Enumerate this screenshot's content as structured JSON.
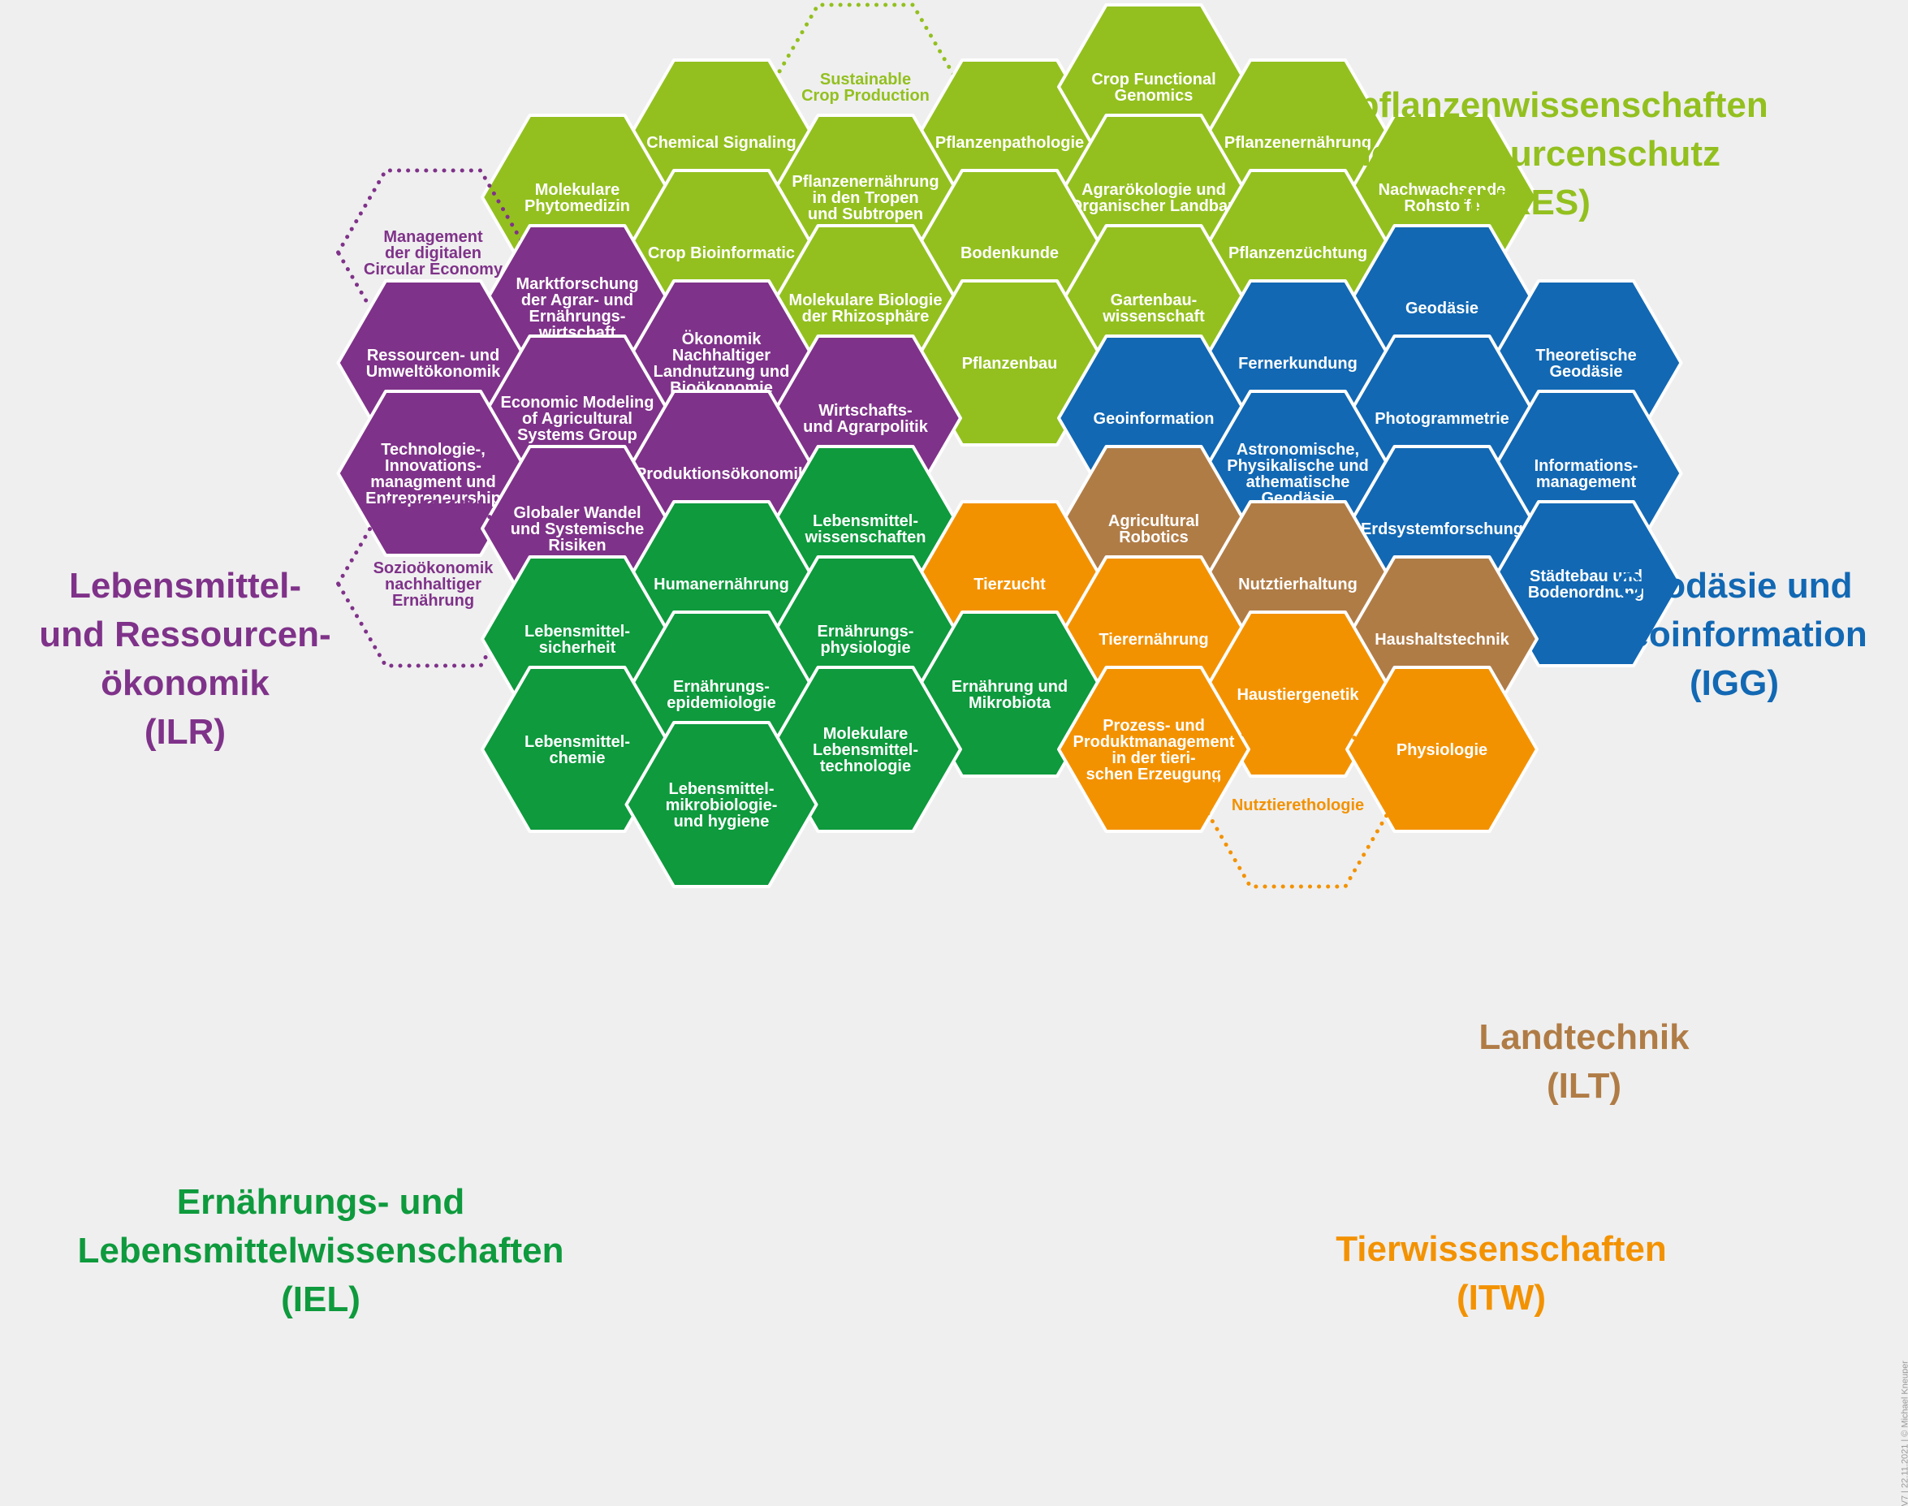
{
  "colors": {
    "light_green": "#93c01f",
    "purple": "#7f3289",
    "blue": "#1268b3",
    "dark_green": "#0e9a3d",
    "orange": "#f39200",
    "brown": "#b07c46",
    "background": "#efefef",
    "border": "#ffffff"
  },
  "institutes": {
    "inres": {
      "label": "Nutzpflanzenwissenschaften\nund Ressourcenschutz\n(INRES)",
      "color": "light_green"
    },
    "ilr": {
      "label": "Lebensmittel-\nund Ressourcen-\nökonomik\n(ILR)",
      "color": "purple"
    },
    "igg": {
      "label": "Geodäsie und\nGeoinformation\n(IGG)",
      "color": "blue"
    },
    "ilt": {
      "label": "Landtechnik\n(ILT)",
      "color": "brown"
    },
    "itw": {
      "label": "Tierwissenschaften\n(ITW)",
      "color": "orange"
    },
    "iel": {
      "label": "Ernährungs- und\nLebensmittelwissenschaften\n(IEL)",
      "color": "dark_green"
    }
  },
  "cells": [
    {
      "col": 3,
      "row": 1,
      "color": "light_green",
      "lines": [
        "Chemical Signaling"
      ]
    },
    {
      "col": 4,
      "row": 0.5,
      "color": "light_green",
      "dashed": true,
      "lines": [
        "Sustainable",
        "Crop Production"
      ]
    },
    {
      "col": 5,
      "row": 1,
      "color": "light_green",
      "lines": [
        "Pflanzenpathologie"
      ]
    },
    {
      "col": 6,
      "row": 0.5,
      "color": "light_green",
      "lines": [
        "Crop Functional",
        "Genomics"
      ]
    },
    {
      "col": 7,
      "row": 1,
      "color": "light_green",
      "lines": [
        "Pflanzenernährung"
      ]
    },
    {
      "col": 2,
      "row": 1.5,
      "color": "light_green",
      "lines": [
        "Molekulare",
        "Phytomedizin"
      ]
    },
    {
      "col": 4,
      "row": 1.5,
      "color": "light_green",
      "lines": [
        "Pflanzenernährung",
        "in den Tropen",
        "und Subtropen"
      ]
    },
    {
      "col": 6,
      "row": 1.5,
      "color": "light_green",
      "lines": [
        "Agrarökologie und",
        "Organischer Landbau"
      ]
    },
    {
      "col": 8,
      "row": 1.5,
      "color": "light_green",
      "lines": [
        "Nachwachsende",
        "Rohstoffe"
      ]
    },
    {
      "col": 1,
      "row": 2,
      "color": "purple",
      "dashed": true,
      "lines": [
        "Management",
        "der digitalen",
        "Circular Economy"
      ]
    },
    {
      "col": 3,
      "row": 2,
      "color": "light_green",
      "lines": [
        "Crop Bioinformatic"
      ]
    },
    {
      "col": 5,
      "row": 2,
      "color": "light_green",
      "lines": [
        "Bodenkunde"
      ]
    },
    {
      "col": 7,
      "row": 2,
      "color": "light_green",
      "lines": [
        "Pflanzenzüchtung"
      ]
    },
    {
      "col": 2,
      "row": 2.5,
      "color": "purple",
      "lines": [
        "Marktforschung",
        "der Agrar- und",
        "Ernährungs-",
        "wirtschaft"
      ]
    },
    {
      "col": 4,
      "row": 2.5,
      "color": "light_green",
      "lines": [
        "Molekulare Biologie",
        "der Rhizosphäre"
      ]
    },
    {
      "col": 6,
      "row": 2.5,
      "color": "light_green",
      "lines": [
        "Gartenbau-",
        "wissenschaft"
      ]
    },
    {
      "col": 8,
      "row": 2.5,
      "color": "blue",
      "lines": [
        "Geodäsie"
      ]
    },
    {
      "col": 1,
      "row": 3,
      "color": "purple",
      "lines": [
        "Ressourcen- und",
        "Umweltökonomik"
      ]
    },
    {
      "col": 3,
      "row": 3,
      "color": "purple",
      "lines": [
        "Ökonomik",
        "Nachhaltiger",
        "Landnutzung und",
        "Bioökonomie"
      ]
    },
    {
      "col": 5,
      "row": 3,
      "color": "light_green",
      "lines": [
        "Pflanzenbau"
      ]
    },
    {
      "col": 7,
      "row": 3,
      "color": "blue",
      "lines": [
        "Fernerkundung"
      ]
    },
    {
      "col": 9,
      "row": 3,
      "color": "blue",
      "lines": [
        "Theoretische",
        "Geodäsie"
      ]
    },
    {
      "col": 2,
      "row": 3.5,
      "color": "purple",
      "lines": [
        "Economic Modeling",
        "of Agricultural",
        "Systems Group"
      ]
    },
    {
      "col": 4,
      "row": 3.5,
      "color": "purple",
      "lines": [
        "Wirtschafts-",
        "und Agrarpolitik"
      ]
    },
    {
      "col": 6,
      "row": 3.5,
      "color": "blue",
      "lines": [
        "Geoinformation"
      ]
    },
    {
      "col": 8,
      "row": 3.5,
      "color": "blue",
      "lines": [
        "Photogrammetrie"
      ]
    },
    {
      "col": 1,
      "row": 4,
      "color": "purple",
      "lines": [
        "Technologie-,",
        "Innovations-",
        "managment und",
        "Entrepreneurship"
      ]
    },
    {
      "col": 3,
      "row": 4,
      "color": "purple",
      "lines": [
        "Produktionsökonomik"
      ]
    },
    {
      "col": 7,
      "row": 4,
      "color": "blue",
      "lines": [
        "Astronomische,",
        "Physikalische und",
        "athematische",
        "Geodäsie"
      ]
    },
    {
      "col": 9,
      "row": 4,
      "color": "blue",
      "lines": [
        "Informations-",
        "management"
      ]
    },
    {
      "col": 2,
      "row": 4.5,
      "color": "purple",
      "lines": [
        "Globaler Wandel",
        "und Systemische",
        "Risiken"
      ]
    },
    {
      "col": 4,
      "row": 4.5,
      "color": "dark_green",
      "lines": [
        "Lebensmittel-",
        "wissenschaften"
      ]
    },
    {
      "col": 6,
      "row": 4.5,
      "color": "brown",
      "lines": [
        "Agricultural",
        "Robotics"
      ]
    },
    {
      "col": 8,
      "row": 4.5,
      "color": "blue",
      "lines": [
        "Erdsystemforschung"
      ]
    },
    {
      "col": 1,
      "row": 5,
      "color": "purple",
      "dashed": true,
      "lines": [
        "Sozioökonomik",
        "nachhaltiger",
        "Ernährung"
      ]
    },
    {
      "col": 3,
      "row": 5,
      "color": "dark_green",
      "lines": [
        "Humanernährung"
      ]
    },
    {
      "col": 5,
      "row": 5,
      "color": "orange",
      "lines": [
        "Tierzucht"
      ]
    },
    {
      "col": 7,
      "row": 5,
      "color": "brown",
      "lines": [
        "Nutztierhaltung"
      ]
    },
    {
      "col": 9,
      "row": 5,
      "color": "blue",
      "lines": [
        "Städtebau und",
        "Bodenordnung"
      ]
    },
    {
      "col": 2,
      "row": 5.5,
      "color": "dark_green",
      "lines": [
        "Lebensmittel-",
        "sicherheit"
      ]
    },
    {
      "col": 4,
      "row": 5.5,
      "color": "dark_green",
      "lines": [
        "Ernährungs-",
        "physiologie"
      ]
    },
    {
      "col": 6,
      "row": 5.5,
      "color": "orange",
      "lines": [
        "Tierernährung"
      ]
    },
    {
      "col": 8,
      "row": 5.5,
      "color": "brown",
      "lines": [
        "Haushaltstechnik"
      ]
    },
    {
      "col": 3,
      "row": 6,
      "color": "dark_green",
      "lines": [
        "Ernährungs-",
        "epidemiologie"
      ]
    },
    {
      "col": 5,
      "row": 6,
      "color": "dark_green",
      "lines": [
        "Ernährung und",
        "Mikrobiota"
      ]
    },
    {
      "col": 7,
      "row": 6,
      "color": "orange",
      "lines": [
        "Haustiergenetik"
      ]
    },
    {
      "col": 2,
      "row": 6.5,
      "color": "dark_green",
      "lines": [
        "Lebensmittel-",
        "chemie"
      ]
    },
    {
      "col": 4,
      "row": 6.5,
      "color": "dark_green",
      "lines": [
        "Molekulare",
        "Lebensmittel-",
        "technologie"
      ]
    },
    {
      "col": 6,
      "row": 6.5,
      "color": "orange",
      "lines": [
        "Prozess- und",
        "Produktmanagement",
        "in der tieri-",
        "schen Erzeugung"
      ]
    },
    {
      "col": 8,
      "row": 6.5,
      "color": "orange",
      "lines": [
        "Physiologie"
      ]
    },
    {
      "col": 3,
      "row": 7,
      "color": "dark_green",
      "lines": [
        "Lebensmittel-",
        "mikrobiologie-",
        "und hygiene"
      ]
    },
    {
      "col": 7,
      "row": 7,
      "color": "orange",
      "dashed": true,
      "lines": [
        "Nutztierethologie"
      ]
    }
  ],
  "footer": "V7 | 22.11.2021 | © Michael Kneuper"
}
